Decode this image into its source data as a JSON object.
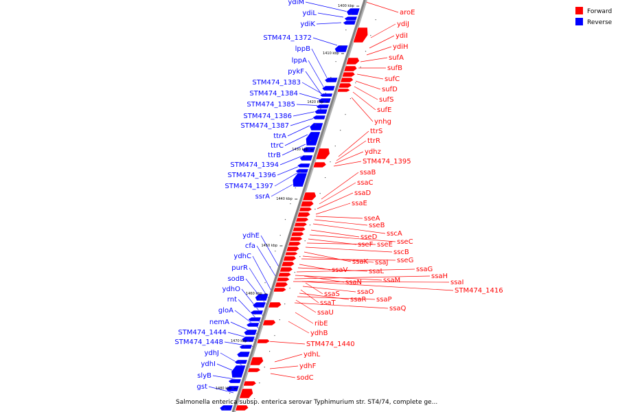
{
  "legend": [
    {
      "label": "Forward",
      "color": "#ff0000"
    },
    {
      "label": "Reverse",
      "color": "#0000ff"
    }
  ],
  "caption": "Salmonella enterica subsp. enterica serovar Typhimurium str. ST4/74, complete ge...",
  "colors": {
    "forward": "#ff0000",
    "reverse": "#0000ff",
    "backbone": "#808080"
  },
  "ticks": [
    "1400 kbp",
    "1410 kbp",
    "1420 kbp",
    "1430 kbp",
    "1440 kbp",
    "1450 kbp",
    "1460 kbp",
    "1470 kbp",
    "1480 kbp"
  ],
  "reverse_labels": [
    "ydiM",
    "ydiL",
    "ydiK",
    "STM474_1372",
    "lppB",
    "lppA",
    "pykF",
    "STM474_1383",
    "STM474_1384",
    "STM474_1385",
    "STM474_1386",
    "STM474_1387",
    "ttrA",
    "ttrC",
    "ttrB",
    "STM474_1394",
    "STM474_1396",
    "STM474_1397",
    "ssrA",
    "ydhE",
    "cfa",
    "ydhC",
    "purR",
    "sodB",
    "ydhO",
    "rnt",
    "gloA",
    "nemA",
    "STM474_1444",
    "STM474_1448",
    "ydhJ",
    "ydhI",
    "slyB",
    "gst"
  ],
  "forward_labels": [
    "aroE",
    "ydiJ",
    "ydiI",
    "ydiH",
    "sufA",
    "sufB",
    "sufC",
    "sufD",
    "sufS",
    "sufE",
    "ynhg",
    "ttrS",
    "ttrR",
    "ydhz",
    "STM474_1395",
    "ssaB",
    "ssaC",
    "ssaD",
    "ssaE",
    "sseA",
    "sseB",
    "sscA",
    "sseD",
    "sseC",
    "sseF",
    "sseE",
    "sscB",
    "ssaK",
    "ssaJ",
    "sseG",
    "ssaV",
    "ssaL",
    "ssaG",
    "ssaM",
    "ssaH",
    "ssaI",
    "ssaN",
    "STM474_1416",
    "ssaS",
    "ssaO",
    "ssaT",
    "ssaR",
    "ssaP",
    "ssaU",
    "ssaQ",
    "ribE",
    "ydhB",
    "STM474_1440",
    "ydhL",
    "ydhF",
    "sodC"
  ]
}
